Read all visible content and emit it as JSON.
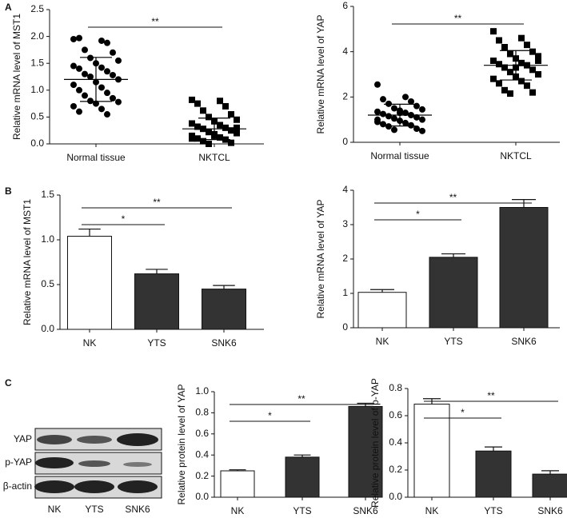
{
  "panel_labels": [
    "A",
    "B",
    "C"
  ],
  "blot": {
    "rows": [
      "YAP",
      "p-YAP",
      "β-actin"
    ],
    "lanes": [
      "NK",
      "YTS",
      "SNK6"
    ]
  },
  "chart_data": [
    {
      "type": "dotplot",
      "ylabel": "Relative mRNA level of  MST1",
      "categories": [
        "Normal tissue",
        "NKTCL"
      ],
      "markers": [
        "circle",
        "square"
      ],
      "color": "#000000",
      "points": [
        [
          1.95,
          1.92,
          1.97,
          1.88,
          1.75,
          1.7,
          1.6,
          1.55,
          1.5,
          1.45,
          1.42,
          1.4,
          1.35,
          1.3,
          1.28,
          1.25,
          1.2,
          1.15,
          1.1,
          1.05,
          1.0,
          0.95,
          0.9,
          0.85,
          0.8,
          0.78,
          0.75,
          0.7,
          0.65,
          0.6,
          0.55
        ],
        [
          0.82,
          0.8,
          0.75,
          0.7,
          0.62,
          0.55,
          0.5,
          0.45,
          0.42,
          0.38,
          0.35,
          0.32,
          0.3,
          0.28,
          0.25,
          0.22,
          0.2,
          0.18,
          0.15,
          0.12,
          0.1,
          0.08,
          0.05,
          0.02,
          0.0,
          0.3,
          0.15,
          0.1
        ]
      ],
      "means": [
        1.2,
        0.28
      ],
      "sd": [
        0.41,
        0.2
      ],
      "ylim": [
        0,
        2.5
      ],
      "yticks": [
        {
          "value": 0,
          "label": "0.0"
        },
        0.5,
        {
          "value": 1,
          "label": "1.0"
        },
        1.5,
        {
          "value": 2,
          "label": "2.0"
        },
        2.5
      ],
      "comparisons": [
        {
          "from": "Normal tissue",
          "to": "NKTCL",
          "label": "**"
        }
      ]
    },
    {
      "type": "dotplot",
      "ylabel": "Relative mRNA level of YAP",
      "categories": [
        "Normal tissue",
        "NKTCL"
      ],
      "markers": [
        "circle",
        "square"
      ],
      "color": "#000000",
      "points": [
        [
          2.55,
          2.0,
          1.9,
          1.8,
          1.7,
          1.6,
          1.5,
          1.45,
          1.4,
          1.35,
          1.3,
          1.25,
          1.2,
          1.15,
          1.1,
          1.05,
          1.0,
          0.95,
          0.9,
          0.85,
          0.8,
          0.75,
          0.7,
          0.6,
          0.55,
          0.5,
          1.3,
          1.0
        ],
        [
          4.9,
          4.6,
          4.5,
          4.3,
          4.2,
          4.0,
          3.9,
          3.8,
          3.7,
          3.6,
          3.5,
          3.45,
          3.4,
          3.3,
          3.2,
          3.1,
          3.0,
          2.9,
          2.8,
          2.7,
          2.6,
          2.5,
          2.3,
          2.2,
          2.15,
          3.6,
          3.3
        ]
      ],
      "means": [
        1.2,
        3.4
      ],
      "sd": [
        0.48,
        0.65
      ],
      "ylim": [
        0,
        6
      ],
      "yticks": [
        0,
        2,
        4,
        6
      ],
      "comparisons": [
        {
          "from": "Normal tissue",
          "to": "NKTCL",
          "label": "**"
        }
      ]
    },
    {
      "type": "bar",
      "ylabel": "Relative mRNA level of  MST1",
      "categories": [
        "NK",
        "YTS",
        "SNK6"
      ],
      "values": [
        1.04,
        0.62,
        0.45
      ],
      "errors": [
        0.08,
        0.05,
        0.04
      ],
      "colors": [
        "#ffffff",
        "#333333",
        "#333333"
      ],
      "ylim": [
        0,
        1.5
      ],
      "yticks": [
        {
          "value": 0,
          "label": "0.0"
        },
        0.5,
        {
          "value": 1,
          "label": "1.0"
        },
        1.5
      ],
      "comparisons": [
        {
          "from": "NK",
          "to": "YTS",
          "label": "*"
        },
        {
          "from": "NK",
          "to": "SNK6",
          "label": "**"
        }
      ]
    },
    {
      "type": "bar",
      "ylabel": "Relative mRNA level of YAP",
      "categories": [
        "NK",
        "YTS",
        "SNK6"
      ],
      "values": [
        1.03,
        2.05,
        3.5
      ],
      "errors": [
        0.08,
        0.1,
        0.23
      ],
      "colors": [
        "#ffffff",
        "#333333",
        "#333333"
      ],
      "ylim": [
        0,
        4
      ],
      "yticks": [
        0,
        1,
        2,
        3,
        4
      ],
      "comparisons": [
        {
          "from": "NK",
          "to": "YTS",
          "label": "*"
        },
        {
          "from": "NK",
          "to": "SNK6",
          "label": "**"
        }
      ]
    },
    {
      "type": "bar",
      "ylabel": "Relative protein level of YAP",
      "categories": [
        "NK",
        "YTS",
        "SNK6"
      ],
      "values": [
        0.25,
        0.38,
        0.86
      ],
      "errors": [
        0.01,
        0.02,
        0.03
      ],
      "colors": [
        "#ffffff",
        "#333333",
        "#333333"
      ],
      "ylim": [
        0,
        1
      ],
      "yticks": [
        {
          "value": 0,
          "label": "0.0"
        },
        0.2,
        0.4,
        0.6,
        0.8,
        {
          "value": 1,
          "label": "1.0"
        }
      ],
      "comparisons": [
        {
          "from": "NK",
          "to": "YTS",
          "label": "*"
        },
        {
          "from": "NK",
          "to": "SNK6",
          "label": "**"
        }
      ]
    },
    {
      "type": "bar",
      "ylabel": "Relative protein level of p-YAP",
      "categories": [
        "NK",
        "YTS",
        "SNK6"
      ],
      "values": [
        0.685,
        0.34,
        0.17
      ],
      "errors": [
        0.04,
        0.03,
        0.025
      ],
      "colors": [
        "#ffffff",
        "#333333",
        "#333333"
      ],
      "ylim": [
        0,
        0.8
      ],
      "yticks": [
        {
          "value": 0,
          "label": "0.0"
        },
        0.2,
        0.4,
        0.6,
        0.8
      ],
      "comparisons": [
        {
          "from": "NK",
          "to": "YTS",
          "label": "*"
        },
        {
          "from": "NK",
          "to": "SNK6",
          "label": "**"
        }
      ]
    }
  ]
}
